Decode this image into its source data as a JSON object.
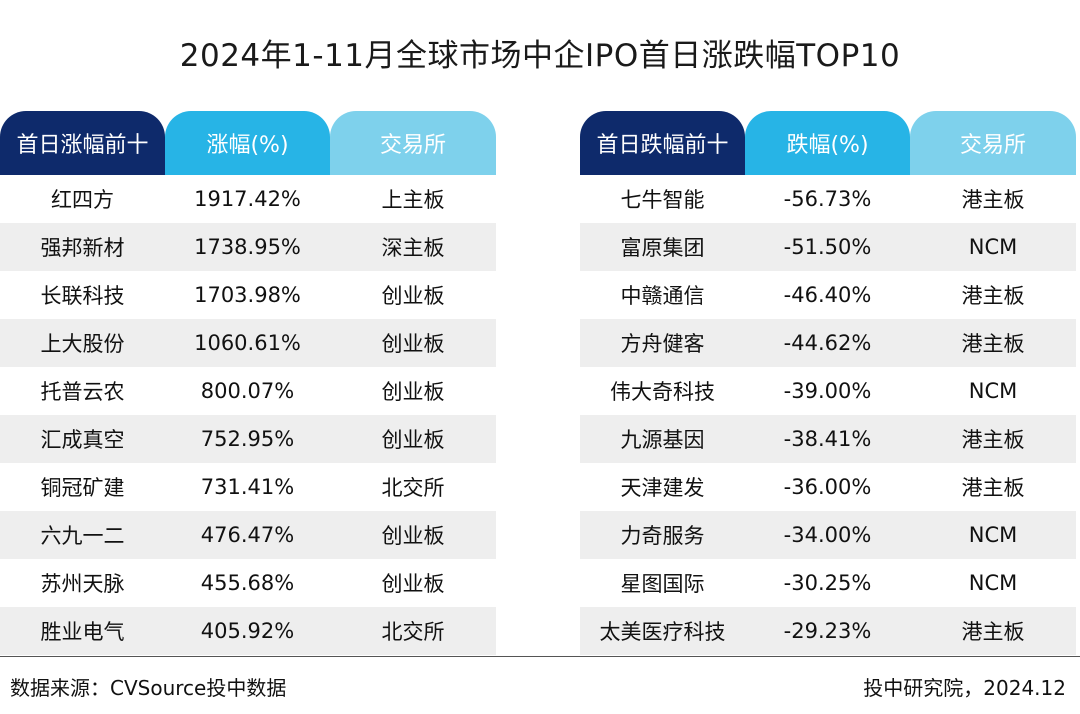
{
  "title": "2024年1-11月全球市场中企IPO首日涨跌幅TOP10",
  "source": "数据来源：CVSource投中数据",
  "credit": "投中研究院，2024.12",
  "colors": {
    "header_dark": "#0e2a6b",
    "header_mid": "#27b4e6",
    "header_light": "#7ed1ec",
    "row_alt": "#eeeeee"
  },
  "chart_data": [
    {
      "type": "table",
      "columns": [
        "首日涨幅前十",
        "涨幅(%)",
        "交易所"
      ],
      "rows": [
        [
          "红四方",
          "1917.42%",
          "上主板"
        ],
        [
          "强邦新材",
          "1738.95%",
          "深主板"
        ],
        [
          "长联科技",
          "1703.98%",
          "创业板"
        ],
        [
          "上大股份",
          "1060.61%",
          "创业板"
        ],
        [
          "托普云农",
          "800.07%",
          "创业板"
        ],
        [
          "汇成真空",
          "752.95%",
          "创业板"
        ],
        [
          "铜冠矿建",
          "731.41%",
          "北交所"
        ],
        [
          "六九一二",
          "476.47%",
          "创业板"
        ],
        [
          "苏州天脉",
          "455.68%",
          "创业板"
        ],
        [
          "胜业电气",
          "405.92%",
          "北交所"
        ]
      ]
    },
    {
      "type": "table",
      "columns": [
        "首日跌幅前十",
        "跌幅(%)",
        "交易所"
      ],
      "rows": [
        [
          "七牛智能",
          "-56.73%",
          "港主板"
        ],
        [
          "富原集团",
          "-51.50%",
          "NCM"
        ],
        [
          "中赣通信",
          "-46.40%",
          "港主板"
        ],
        [
          "方舟健客",
          "-44.62%",
          "港主板"
        ],
        [
          "伟大奇科技",
          "-39.00%",
          "NCM"
        ],
        [
          "九源基因",
          "-38.41%",
          "港主板"
        ],
        [
          "天津建发",
          "-36.00%",
          "港主板"
        ],
        [
          "力奇服务",
          "-34.00%",
          "NCM"
        ],
        [
          "星图国际",
          "-30.25%",
          "NCM"
        ],
        [
          "太美医疗科技",
          "-29.23%",
          "港主板"
        ]
      ]
    }
  ]
}
